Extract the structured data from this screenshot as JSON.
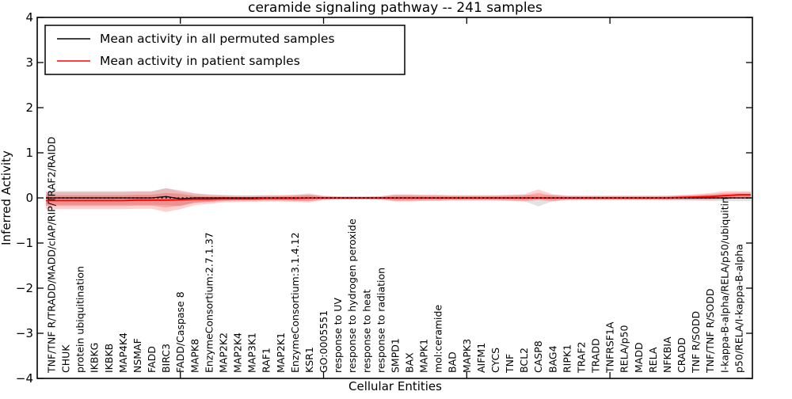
{
  "chart_data": {
    "type": "line",
    "title": "ceramide signaling pathway -- 241 samples",
    "xlabel": "Cellular Entities",
    "ylabel": "Inferred Activity",
    "ylim": [
      -4,
      4
    ],
    "yticks": [
      4,
      3,
      2,
      1,
      0,
      -1,
      -2,
      -3,
      -4
    ],
    "ytick_labels": [
      "4",
      "3",
      "2",
      "1",
      "0",
      "−1",
      "−2",
      "−3",
      "−4"
    ],
    "xticks_at_category_index": [
      9,
      19,
      29,
      39
    ],
    "grid": false,
    "legend_position": "upper left",
    "categories": [
      "TNF/TNF R/TRADD/MADD/cIAP/RIP/TRAF2/RAIDD",
      "CHUK",
      "protein ubiquitination",
      "IKBKG",
      "IKBKB",
      "MAP4K4",
      "NSMAF",
      "FADD",
      "BIRC3",
      "FADD/Caspase 8",
      "MAPK8",
      "EnzymeConsortium:2.7.1.37",
      "MAP2K2",
      "MAP2K4",
      "MAP3K1",
      "RAF1",
      "MAP2K1",
      "EnzymeConsortium:3.1.4.12",
      "KSR1",
      "GO:0005551",
      "response to UV",
      "response to hydrogen peroxide",
      "response to heat",
      "response to radiation",
      "SMPD1",
      "BAX",
      "MAPK1",
      "mol:ceramide",
      "BAD",
      "MAPK3",
      "AIFM1",
      "CYCS",
      "TNF",
      "BCL2",
      "CASP8",
      "BAG4",
      "RIPK1",
      "TRAF2",
      "TRADD",
      "TNFRSF1A",
      "RELA/p50",
      "MADD",
      "RELA",
      "NFKBIA",
      "CRADD",
      "TNF R/SODD",
      "TNF/TNF R/SODD",
      "I-kappa-B-alpha/RELA/p50/ubiquitin",
      "p50/RELA/I-kappa-B-alpha"
    ],
    "series": [
      {
        "name": "Mean activity in all permuted samples",
        "color": "#000000",
        "style": "solid",
        "values": [
          0,
          0,
          0,
          0,
          0,
          0,
          0,
          0,
          0.03,
          -0.02,
          0,
          0,
          0,
          0,
          0,
          0,
          0,
          0,
          0,
          0,
          0,
          0,
          0,
          0,
          0,
          0,
          0,
          0,
          0,
          0,
          0,
          0,
          0,
          0,
          0,
          0,
          0,
          0,
          0,
          0,
          0,
          0,
          0,
          0,
          0,
          0,
          0,
          0,
          0
        ]
      },
      {
        "name": "Mean activity in patient samples",
        "color": "#ff0000",
        "style": "solid",
        "values": [
          -0.06,
          -0.06,
          -0.06,
          -0.06,
          -0.06,
          -0.06,
          -0.05,
          -0.05,
          -0.05,
          -0.04,
          -0.03,
          -0.03,
          -0.02,
          -0.02,
          -0.02,
          -0.01,
          -0.01,
          -0.01,
          0,
          0,
          0,
          0,
          0,
          0,
          0,
          0,
          0,
          0,
          0,
          0,
          0,
          0,
          0,
          0,
          0,
          0,
          0,
          0,
          0,
          0,
          0,
          0,
          0,
          0,
          0.01,
          0.02,
          0.03,
          0.05,
          0.07
        ]
      }
    ],
    "zero_line": {
      "y": 0,
      "style": "dotted",
      "color": "#000000"
    },
    "bands": [
      {
        "name": "permuted-samples-band",
        "center_series": 0,
        "color": "#999999",
        "opacity": 0.28,
        "up": [
          0.15,
          0.15,
          0.15,
          0.15,
          0.15,
          0.15,
          0.15,
          0.15,
          0.19,
          0.16,
          0.1,
          0.08,
          0.065,
          0.06,
          0.06,
          0.06,
          0.06,
          0.065,
          0.075,
          0.04,
          0.03,
          0.03,
          0.03,
          0.035,
          0.065,
          0.065,
          0.06,
          0.06,
          0.055,
          0.055,
          0.055,
          0.055,
          0.06,
          0.07,
          0.04,
          0.07,
          0.05,
          0.045,
          0.045,
          0.045,
          0.045,
          0.045,
          0.045,
          0.05,
          0.055,
          0.06,
          0.065,
          0.07,
          0.07
        ],
        "down": [
          0.15,
          0.15,
          0.15,
          0.15,
          0.15,
          0.15,
          0.15,
          0.15,
          0.19,
          0.16,
          0.1,
          0.08,
          0.065,
          0.06,
          0.06,
          0.06,
          0.06,
          0.065,
          0.075,
          0.04,
          0.03,
          0.03,
          0.03,
          0.035,
          0.065,
          0.065,
          0.06,
          0.06,
          0.055,
          0.055,
          0.055,
          0.055,
          0.06,
          0.07,
          0.19,
          0.07,
          0.05,
          0.045,
          0.045,
          0.045,
          0.045,
          0.045,
          0.045,
          0.05,
          0.055,
          0.06,
          0.065,
          0.07,
          0.07
        ]
      },
      {
        "name": "patient-samples-band-outer",
        "center_series": 1,
        "color": "#ff0000",
        "opacity": 0.18,
        "up": [
          0.19,
          0.19,
          0.19,
          0.19,
          0.19,
          0.19,
          0.19,
          0.19,
          0.26,
          0.21,
          0.13,
          0.1,
          0.08,
          0.07,
          0.07,
          0.07,
          0.07,
          0.08,
          0.1,
          0.05,
          0.035,
          0.03,
          0.03,
          0.04,
          0.08,
          0.08,
          0.07,
          0.07,
          0.06,
          0.06,
          0.06,
          0.06,
          0.07,
          0.08,
          0.19,
          0.08,
          0.05,
          0.045,
          0.045,
          0.045,
          0.045,
          0.045,
          0.045,
          0.05,
          0.055,
          0.065,
          0.08,
          0.1,
          0.08
        ],
        "down": [
          0.19,
          0.19,
          0.19,
          0.19,
          0.19,
          0.19,
          0.19,
          0.19,
          0.26,
          0.21,
          0.13,
          0.1,
          0.08,
          0.07,
          0.07,
          0.07,
          0.07,
          0.08,
          0.1,
          0.05,
          0.035,
          0.03,
          0.03,
          0.04,
          0.08,
          0.08,
          0.07,
          0.07,
          0.06,
          0.06,
          0.06,
          0.06,
          0.07,
          0.08,
          0.05,
          0.08,
          0.05,
          0.045,
          0.045,
          0.045,
          0.045,
          0.045,
          0.045,
          0.05,
          0.055,
          0.065,
          0.08,
          0.08,
          0.08
        ]
      },
      {
        "name": "patient-samples-band-inner",
        "center_series": 1,
        "color": "#ff0000",
        "opacity": 0.22,
        "up": [
          0.12,
          0.12,
          0.12,
          0.12,
          0.12,
          0.12,
          0.12,
          0.12,
          0.16,
          0.13,
          0.08,
          0.06,
          0.05,
          0.04,
          0.04,
          0.04,
          0.04,
          0.05,
          0.06,
          0.03,
          0.02,
          0.02,
          0.02,
          0.025,
          0.05,
          0.05,
          0.04,
          0.04,
          0.035,
          0.035,
          0.035,
          0.035,
          0.04,
          0.05,
          0.11,
          0.05,
          0.03,
          0.028,
          0.028,
          0.028,
          0.028,
          0.028,
          0.028,
          0.03,
          0.034,
          0.04,
          0.05,
          0.06,
          0.05
        ],
        "down": [
          0.12,
          0.12,
          0.12,
          0.12,
          0.12,
          0.12,
          0.12,
          0.12,
          0.16,
          0.13,
          0.08,
          0.06,
          0.05,
          0.04,
          0.04,
          0.04,
          0.04,
          0.05,
          0.06,
          0.03,
          0.02,
          0.02,
          0.02,
          0.025,
          0.05,
          0.05,
          0.04,
          0.04,
          0.035,
          0.035,
          0.035,
          0.035,
          0.04,
          0.05,
          0.03,
          0.05,
          0.03,
          0.028,
          0.028,
          0.028,
          0.028,
          0.028,
          0.028,
          0.03,
          0.034,
          0.04,
          0.05,
          0.05,
          0.05
        ]
      }
    ],
    "colors": {
      "background": "#ffffff",
      "frame": "#000000",
      "patient_line": "#ff0000",
      "permuted_line": "#000000"
    }
  },
  "legend": {
    "entries": [
      {
        "label": "Mean activity in all permuted samples",
        "color": "#000000"
      },
      {
        "label": "Mean activity in patient samples",
        "color": "#ff0000"
      }
    ]
  }
}
